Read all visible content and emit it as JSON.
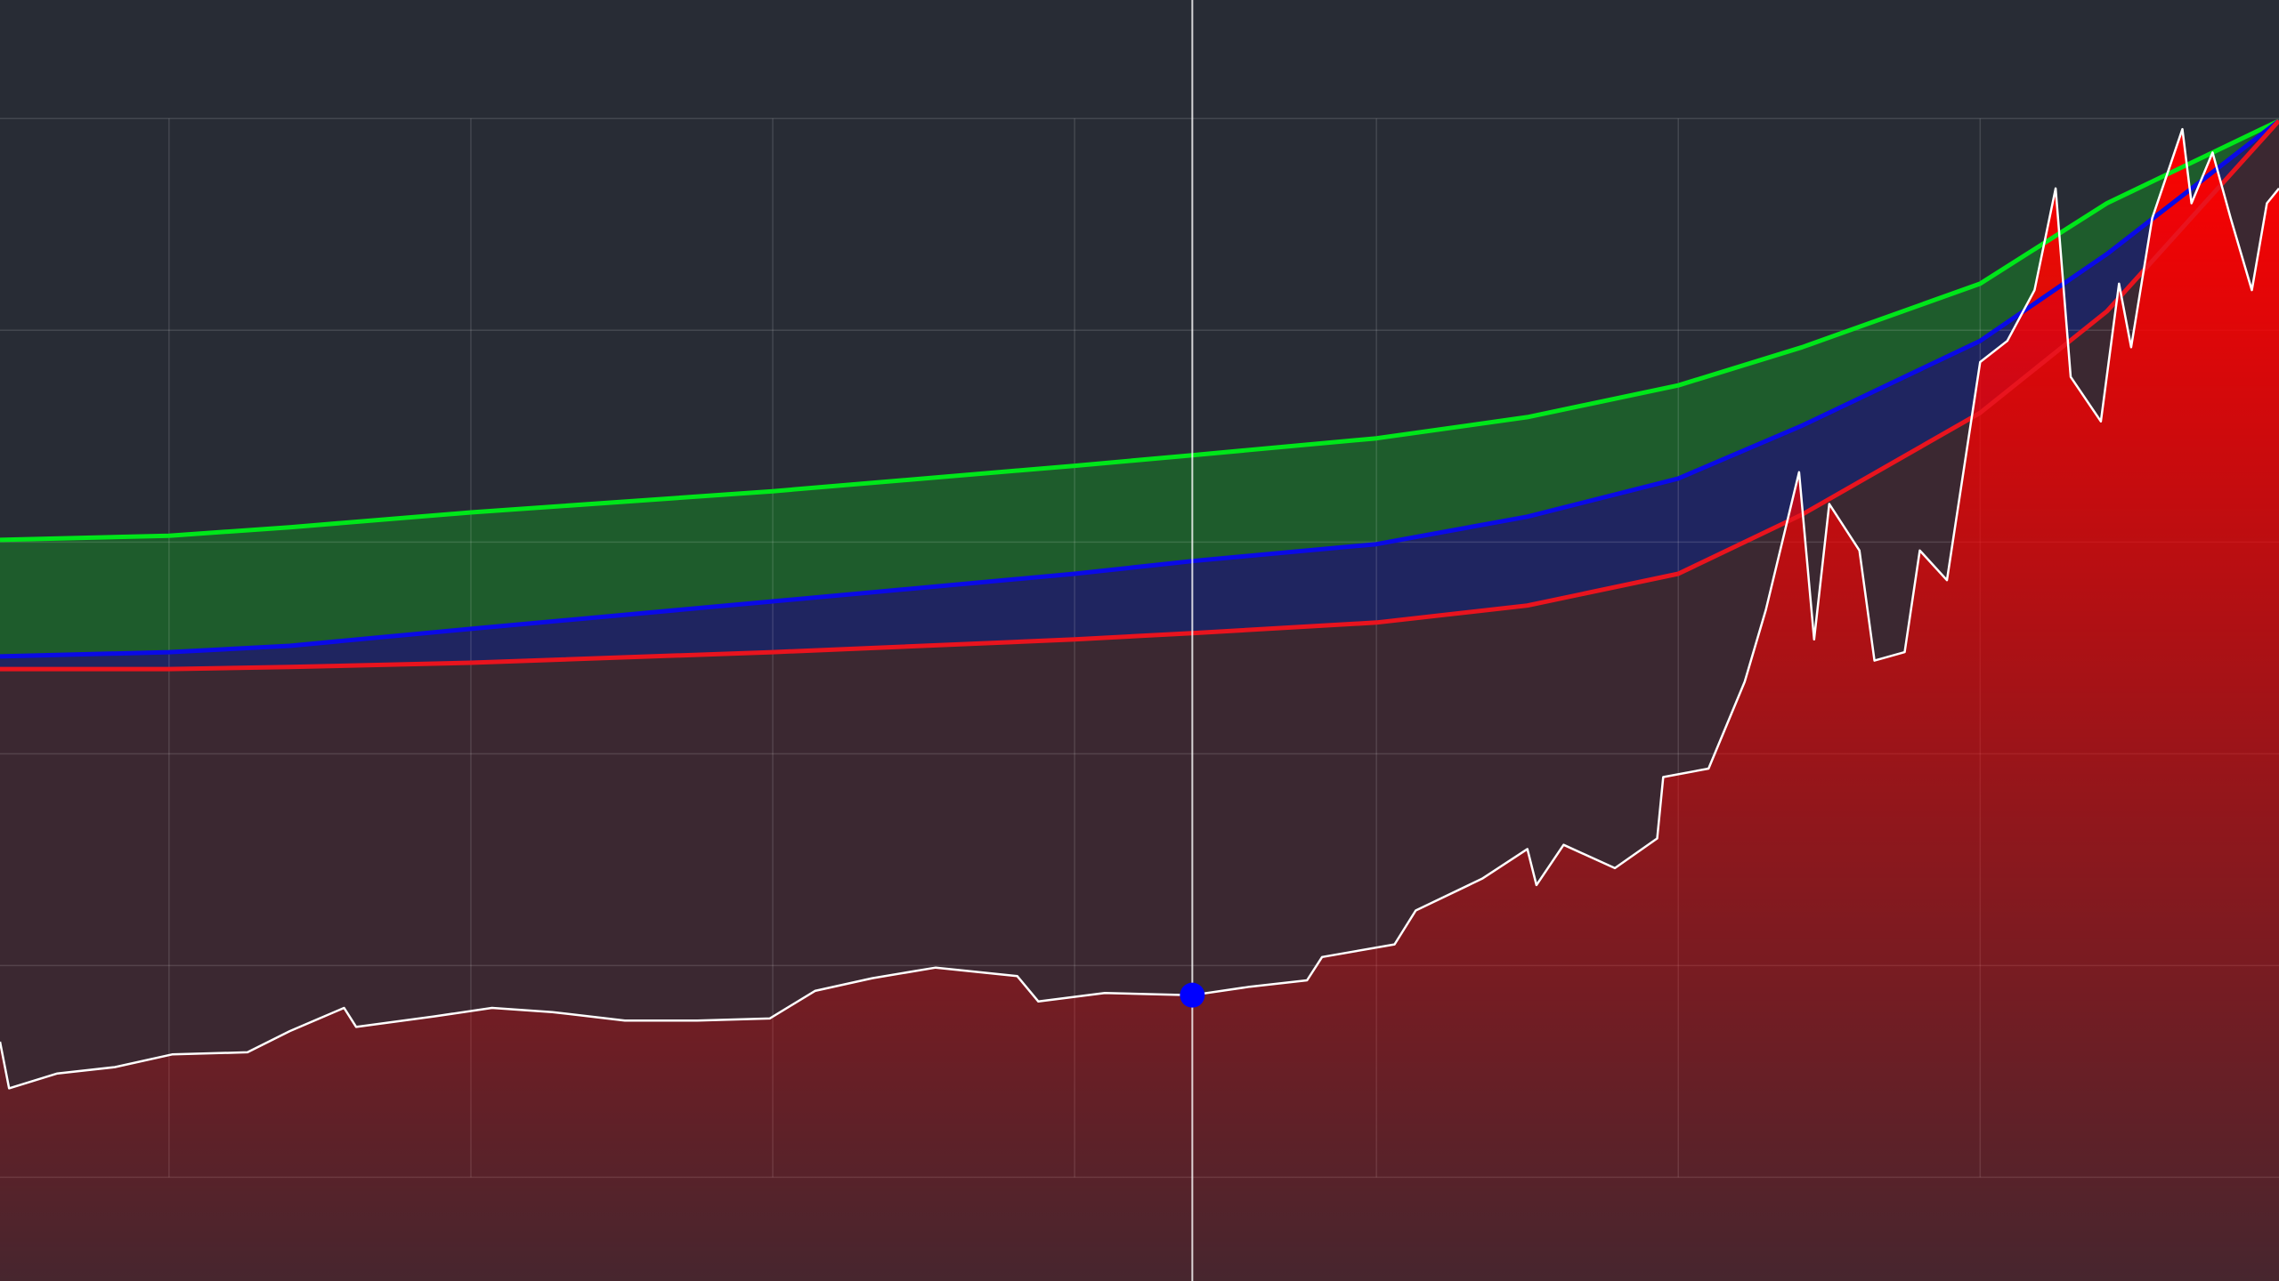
{
  "chart_data": {
    "type": "line",
    "xlim": [
      0.44,
      7.99
    ],
    "ylim": [
      -0.49,
      5.56
    ],
    "xticks": [
      1,
      2,
      3,
      4,
      5,
      6,
      7
    ],
    "yticks": [
      0,
      1,
      2,
      3,
      4,
      5
    ],
    "grid": true,
    "background": "#282c35",
    "series": [
      {
        "type": "band",
        "color": "#00e61a",
        "fill": "#1e5c2c",
        "x": [
          0.44,
          1,
          1.4,
          2,
          3,
          4,
          4.39,
          5,
          5.5,
          6,
          6.41,
          7,
          7.42,
          7.99
        ],
        "values": [
          3.01,
          3.03,
          3.07,
          3.14,
          3.24,
          3.36,
          3.41,
          3.49,
          3.59,
          3.74,
          3.92,
          4.22,
          4.6,
          4.99
        ]
      },
      {
        "type": "band",
        "color": "#0a0ae6",
        "fill": "#1f2560",
        "x": [
          0.44,
          1,
          1.4,
          2,
          3,
          4,
          4.39,
          5,
          5.5,
          6,
          6.41,
          7,
          7.42,
          7.99
        ],
        "values": [
          2.46,
          2.48,
          2.51,
          2.59,
          2.72,
          2.85,
          2.91,
          2.99,
          3.12,
          3.3,
          3.55,
          3.95,
          4.36,
          4.99
        ]
      },
      {
        "type": "band",
        "color": "#e8141e",
        "fill": "#3b2831",
        "x": [
          0.44,
          1,
          1.4,
          2,
          3,
          4,
          4.39,
          5,
          5.5,
          6,
          6.41,
          7,
          7.42,
          7.99
        ],
        "values": [
          2.4,
          2.4,
          2.41,
          2.43,
          2.48,
          2.54,
          2.57,
          2.62,
          2.7,
          2.85,
          3.13,
          3.61,
          4.09,
          4.99
        ]
      },
      {
        "type": "area",
        "color": "#ffffff",
        "fill": "#ff0000",
        "x": [
          0.44,
          0.47,
          0.63,
          0.82,
          1.01,
          1.26,
          1.4,
          1.58,
          1.62,
          1.88,
          2.07,
          2.27,
          2.51,
          2.75,
          2.99,
          3.14,
          3.33,
          3.54,
          3.81,
          3.88,
          4.1,
          4.39,
          4.58,
          4.77,
          4.82,
          5.06,
          5.13,
          5.35,
          5.5,
          5.53,
          5.62,
          5.79,
          5.93,
          5.95,
          6.1,
          6.22,
          6.29,
          6.4,
          6.45,
          6.5,
          6.6,
          6.65,
          6.75,
          6.8,
          6.89,
          7.0,
          7.09,
          7.18,
          7.25,
          7.3,
          7.4,
          7.46,
          7.5,
          7.57,
          7.67,
          7.7,
          7.77,
          7.83,
          7.9,
          7.95,
          7.99
        ],
        "values": [
          0.64,
          0.42,
          0.49,
          0.52,
          0.58,
          0.59,
          0.69,
          0.8,
          0.71,
          0.76,
          0.8,
          0.78,
          0.74,
          0.74,
          0.75,
          0.88,
          0.94,
          0.99,
          0.95,
          0.83,
          0.87,
          0.86,
          0.9,
          0.93,
          1.04,
          1.1,
          1.26,
          1.41,
          1.55,
          1.38,
          1.57,
          1.46,
          1.6,
          1.89,
          1.93,
          2.34,
          2.68,
          3.33,
          2.54,
          3.18,
          2.96,
          2.44,
          2.48,
          2.96,
          2.82,
          3.85,
          3.95,
          4.19,
          4.67,
          3.78,
          3.57,
          4.22,
          3.92,
          4.53,
          4.95,
          4.6,
          4.84,
          4.53,
          4.19,
          4.6,
          4.67
        ]
      }
    ],
    "highlight": {
      "x": 4.39,
      "value": 0.86,
      "color": "#0000ff"
    }
  }
}
